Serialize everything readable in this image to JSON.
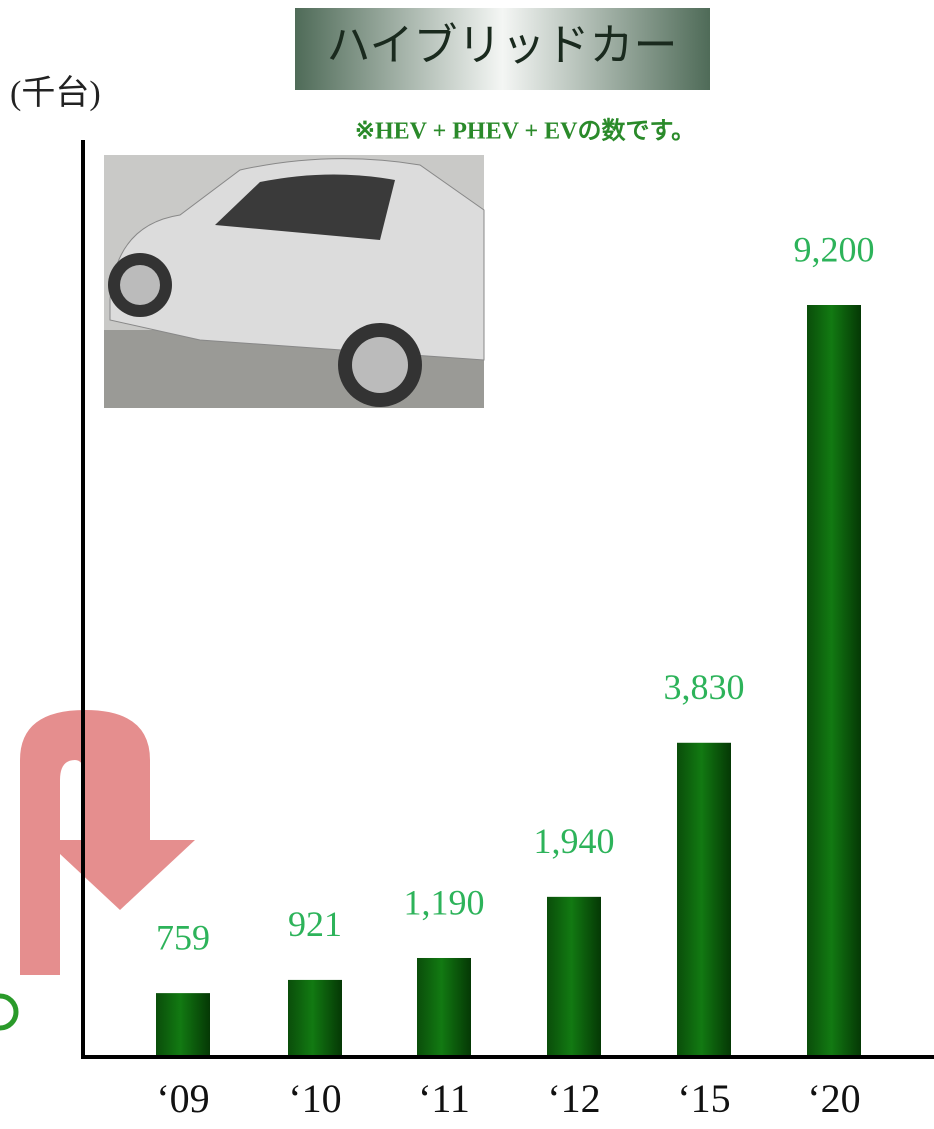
{
  "chart_data": {
    "type": "bar",
    "title": "ハイブリッドカー",
    "y_label": "(千台)",
    "note": "※HEV + PHEV + EVの数です。",
    "categories": [
      "‘09",
      "‘10",
      "‘11",
      "‘12",
      "‘15",
      "‘20"
    ],
    "values": [
      759,
      921,
      1190,
      1940,
      3830,
      9200
    ],
    "value_labels": [
      "759",
      "921",
      "1,190",
      "1,940",
      "3,830",
      "9,200"
    ],
    "color": "#0b6b0b",
    "label_color": "#2db35a"
  }
}
